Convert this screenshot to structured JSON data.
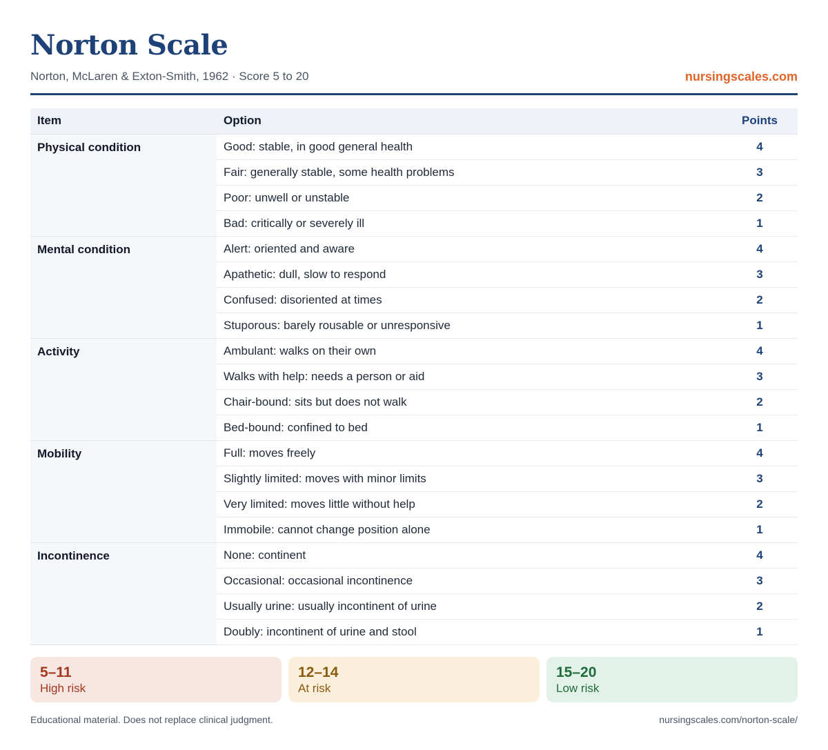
{
  "header": {
    "title": "Norton Scale",
    "subtitle": "Norton, McLaren & Exton-Smith, 1962 · Score 5 to 20",
    "brand": "nursingscales.com"
  },
  "table": {
    "columns": [
      "Item",
      "Option",
      "Points"
    ],
    "groups": [
      {
        "item": "Physical condition",
        "rows": [
          {
            "option": "Good: stable, in good general health",
            "points": "4"
          },
          {
            "option": "Fair: generally stable, some health problems",
            "points": "3"
          },
          {
            "option": "Poor: unwell or unstable",
            "points": "2"
          },
          {
            "option": "Bad: critically or severely ill",
            "points": "1"
          }
        ]
      },
      {
        "item": "Mental condition",
        "rows": [
          {
            "option": "Alert: oriented and aware",
            "points": "4"
          },
          {
            "option": "Apathetic: dull, slow to respond",
            "points": "3"
          },
          {
            "option": "Confused: disoriented at times",
            "points": "2"
          },
          {
            "option": "Stuporous: barely rousable or unresponsive",
            "points": "1"
          }
        ]
      },
      {
        "item": "Activity",
        "rows": [
          {
            "option": "Ambulant: walks on their own",
            "points": "4"
          },
          {
            "option": "Walks with help: needs a person or aid",
            "points": "3"
          },
          {
            "option": "Chair-bound: sits but does not walk",
            "points": "2"
          },
          {
            "option": "Bed-bound: confined to bed",
            "points": "1"
          }
        ]
      },
      {
        "item": "Mobility",
        "rows": [
          {
            "option": "Full: moves freely",
            "points": "4"
          },
          {
            "option": "Slightly limited: moves with minor limits",
            "points": "3"
          },
          {
            "option": "Very limited: moves little without help",
            "points": "2"
          },
          {
            "option": "Immobile: cannot change position alone",
            "points": "1"
          }
        ]
      },
      {
        "item": "Incontinence",
        "rows": [
          {
            "option": "None: continent",
            "points": "4"
          },
          {
            "option": "Occasional: occasional incontinence",
            "points": "3"
          },
          {
            "option": "Usually urine: usually incontinent of urine",
            "points": "2"
          },
          {
            "option": "Doubly: incontinent of urine and stool",
            "points": "1"
          }
        ]
      }
    ]
  },
  "bands": [
    {
      "range": "5–11",
      "label": "High risk",
      "color": "#a2381d",
      "background": "#f7e6e1"
    },
    {
      "range": "12–14",
      "label": "At risk",
      "color": "#8a5a10",
      "background": "#fbefdb"
    },
    {
      "range": "15–20",
      "label": "Low risk",
      "color": "#1f6b3c",
      "background": "#e3f2e9"
    }
  ],
  "footer": {
    "disclaimer": "Educational material. Does not replace clinical judgment.",
    "url": "nursingscales.com/norton-scale/"
  },
  "colors": {
    "primary": "#1e4278",
    "accent": "#e0652a"
  }
}
